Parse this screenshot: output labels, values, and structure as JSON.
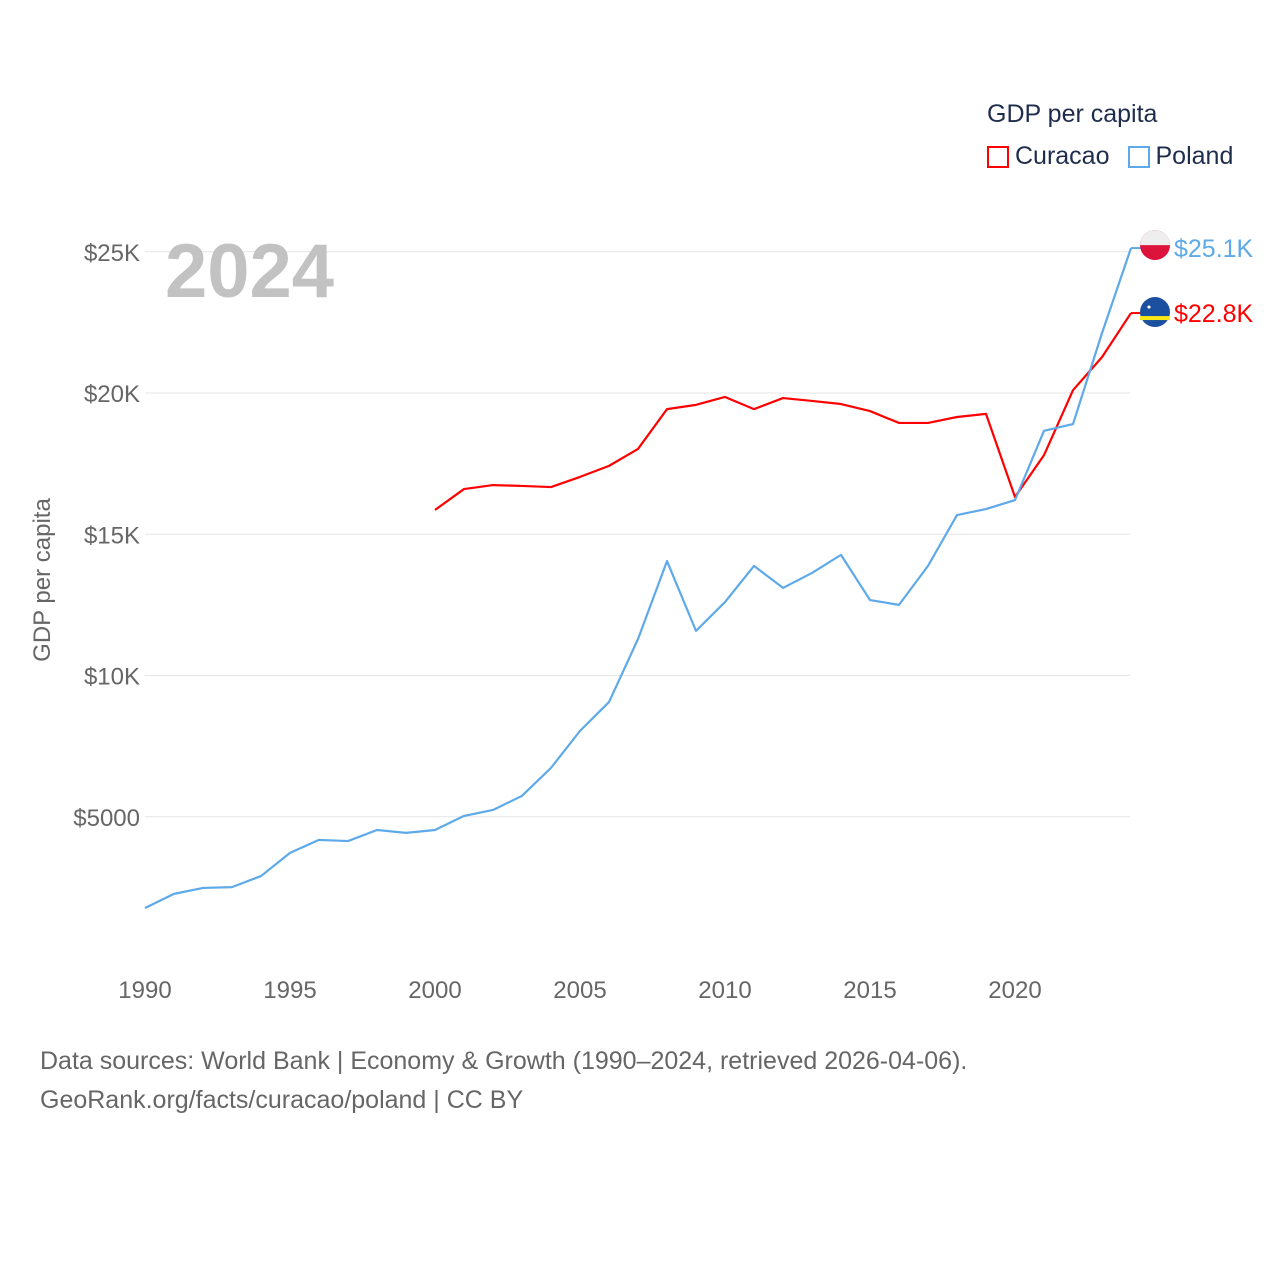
{
  "chart_data": {
    "type": "line",
    "title": "GDP per capita",
    "ylabel": "GDP per capita",
    "xlabel": "",
    "highlight_year": "2024",
    "xlim": [
      1990,
      2024
    ],
    "ylim": [
      0,
      26000
    ],
    "x_ticks": [
      1990,
      1995,
      2000,
      2005,
      2010,
      2015,
      2020
    ],
    "x_tick_labels": [
      "1990",
      "1995",
      "2000",
      "2005",
      "2010",
      "2015",
      "2020"
    ],
    "y_ticks": [
      5000,
      10000,
      15000,
      20000,
      25000
    ],
    "y_tick_labels": [
      "$5000",
      "$10K",
      "$15K",
      "$20K",
      "$25K"
    ],
    "grid": "horizontal",
    "legend_placement": "top-right",
    "series": [
      {
        "name": "Curacao",
        "color": "#ff0000",
        "end_label": "$22.8K",
        "x": [
          2000,
          2001,
          2002,
          2003,
          2004,
          2005,
          2006,
          2007,
          2008,
          2009,
          2010,
          2011,
          2012,
          2013,
          2014,
          2015,
          2016,
          2017,
          2018,
          2019,
          2020,
          2021,
          2022,
          2023,
          2024
        ],
        "values": [
          15860,
          16600,
          16740,
          16710,
          16670,
          17030,
          17420,
          18020,
          19430,
          19580,
          19860,
          19430,
          19820,
          19720,
          19610,
          19360,
          18940,
          18940,
          19150,
          19260,
          16320,
          17800,
          20100,
          21270,
          22830
        ]
      },
      {
        "name": "Poland",
        "color": "#5da9e9",
        "end_label": "$25.1K",
        "x": [
          1990,
          1991,
          1992,
          1993,
          1994,
          1995,
          1996,
          1997,
          1998,
          1999,
          2000,
          2001,
          2002,
          2003,
          2004,
          2005,
          2006,
          2007,
          2008,
          2009,
          2010,
          2011,
          2012,
          2013,
          2014,
          2015,
          2016,
          2017,
          2018,
          2019,
          2020,
          2021,
          2022,
          2023,
          2024
        ],
        "values": [
          1770,
          2270,
          2480,
          2510,
          2900,
          3720,
          4180,
          4140,
          4530,
          4430,
          4530,
          5030,
          5240,
          5740,
          6730,
          8040,
          9060,
          11290,
          14050,
          11580,
          12600,
          13880,
          13100,
          13630,
          14270,
          12670,
          12500,
          13880,
          15680,
          15890,
          16210,
          18660,
          18900,
          22120,
          25130
        ]
      }
    ]
  },
  "footer": {
    "line1": "Data sources: World Bank | Economy & Growth (1990–2024, retrieved 2026-04-06).",
    "line2": "GeoRank.org/facts/curacao/poland | CC BY"
  }
}
